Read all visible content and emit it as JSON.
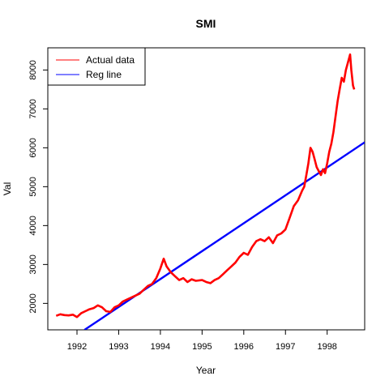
{
  "chart_data": {
    "type": "line",
    "title": "SMI",
    "xlabel": "Year",
    "ylabel": "Val",
    "xlim": [
      1991.3,
      1998.9
    ],
    "ylim": [
      1320,
      8570
    ],
    "x_ticks": [
      1992,
      1993,
      1994,
      1995,
      1996,
      1997,
      1998
    ],
    "y_ticks": [
      2000,
      3000,
      4000,
      5000,
      6000,
      7000,
      8000
    ],
    "legend": {
      "position": "top-left",
      "entries": [
        {
          "label": "Actual data",
          "color": "#ff0000"
        },
        {
          "label": "Reg line",
          "color": "#0000ff"
        }
      ]
    },
    "series": [
      {
        "name": "Actual data",
        "color": "#ff0000",
        "x": [
          1991.5,
          1991.6,
          1991.7,
          1991.8,
          1991.9,
          1992.0,
          1992.1,
          1992.2,
          1992.3,
          1992.4,
          1992.5,
          1992.6,
          1992.7,
          1992.8,
          1992.9,
          1993.0,
          1993.1,
          1993.2,
          1993.3,
          1993.4,
          1993.5,
          1993.6,
          1993.7,
          1993.8,
          1993.9,
          1994.0,
          1994.08,
          1994.15,
          1994.25,
          1994.35,
          1994.45,
          1994.55,
          1994.65,
          1994.75,
          1994.85,
          1995.0,
          1995.1,
          1995.2,
          1995.3,
          1995.4,
          1995.5,
          1995.6,
          1995.7,
          1995.8,
          1995.9,
          1996.0,
          1996.1,
          1996.2,
          1996.3,
          1996.4,
          1996.5,
          1996.6,
          1996.7,
          1996.8,
          1996.9,
          1997.0,
          1997.1,
          1997.2,
          1997.3,
          1997.4,
          1997.45,
          1997.5,
          1997.55,
          1997.6,
          1997.65,
          1997.7,
          1997.75,
          1997.8,
          1997.85,
          1997.9,
          1997.95,
          1998.0,
          1998.05,
          1998.1,
          1998.15,
          1998.2,
          1998.25,
          1998.3,
          1998.35,
          1998.4,
          1998.45,
          1998.5,
          1998.55,
          1998.58,
          1998.62,
          1998.65
        ],
        "y": [
          1680,
          1720,
          1700,
          1690,
          1710,
          1650,
          1750,
          1800,
          1850,
          1880,
          1950,
          1900,
          1800,
          1780,
          1900,
          1950,
          2050,
          2100,
          2150,
          2200,
          2250,
          2350,
          2450,
          2500,
          2650,
          2900,
          3150,
          2950,
          2800,
          2700,
          2600,
          2650,
          2550,
          2620,
          2580,
          2600,
          2550,
          2520,
          2600,
          2650,
          2750,
          2850,
          2950,
          3050,
          3200,
          3300,
          3250,
          3450,
          3600,
          3650,
          3600,
          3700,
          3550,
          3750,
          3800,
          3900,
          4200,
          4500,
          4650,
          4900,
          5000,
          5300,
          5600,
          6000,
          5900,
          5700,
          5500,
          5400,
          5300,
          5450,
          5350,
          5600,
          5900,
          6100,
          6400,
          6800,
          7200,
          7500,
          7800,
          7700,
          8000,
          8200,
          8400,
          8000,
          7600,
          7500
        ]
      },
      {
        "name": "Reg line",
        "color": "#0000ff",
        "x": [
          1992.18,
          1998.9
        ],
        "y": [
          1320,
          6140
        ]
      }
    ]
  }
}
